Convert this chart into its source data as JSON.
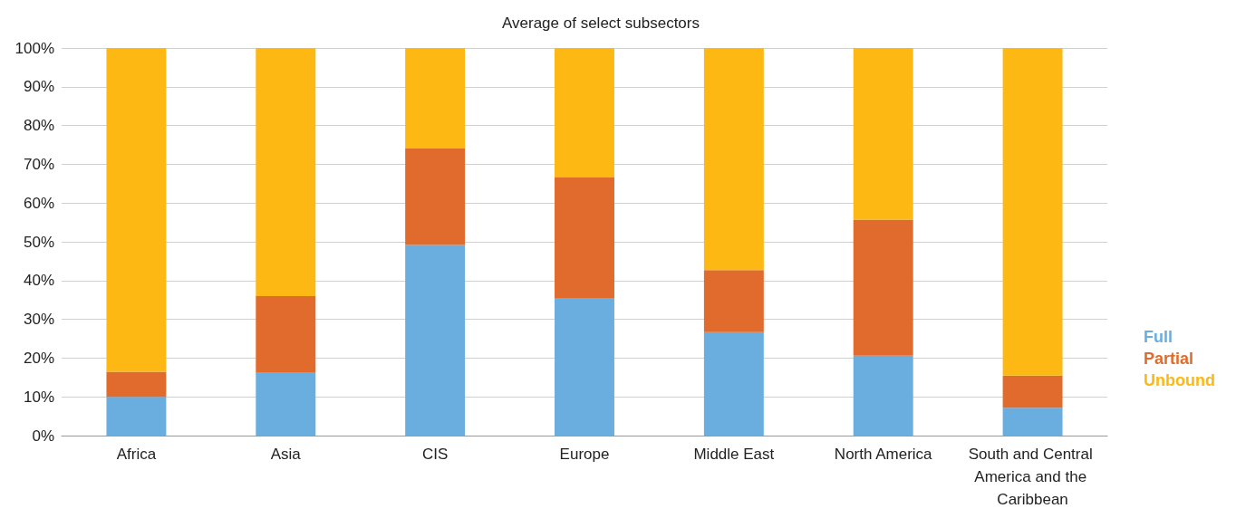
{
  "chart_data": {
    "type": "bar",
    "stacked": true,
    "title": "Average of select subsectors",
    "categories": [
      "Africa",
      "Asia",
      "CIS",
      "Europe",
      "Middle East",
      "North America",
      "South and Central America and the Caribbean"
    ],
    "series": [
      {
        "name": "Full",
        "color": "#6aaee0",
        "values": [
          10,
          16.2,
          49.2,
          35.5,
          26.7,
          20.6,
          7.2
        ]
      },
      {
        "name": "Partial",
        "color": "#e06b2c",
        "values": [
          6.5,
          19.8,
          25,
          31.1,
          16,
          35.1,
          8.3
        ]
      },
      {
        "name": "Unbound",
        "color": "#fdb813",
        "values": [
          83.5,
          64,
          25.8,
          33.4,
          57.3,
          44.3,
          84.5
        ]
      }
    ],
    "ylim": [
      0,
      100
    ],
    "yticks": [
      {
        "value": 0,
        "label": "0%"
      },
      {
        "value": 10,
        "label": "10%"
      },
      {
        "value": 20,
        "label": "20%"
      },
      {
        "value": 30,
        "label": "30%"
      },
      {
        "value": 40,
        "label": "40%"
      },
      {
        "value": 50,
        "label": "50%"
      },
      {
        "value": 60,
        "label": "60%"
      },
      {
        "value": 70,
        "label": "70%"
      },
      {
        "value": 80,
        "label": "80%"
      },
      {
        "value": 90,
        "label": "90%"
      },
      {
        "value": 100,
        "label": "100%"
      }
    ],
    "grid": "y",
    "legend": "right"
  }
}
